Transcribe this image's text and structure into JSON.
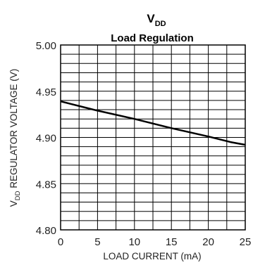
{
  "chart_data": {
    "type": "line",
    "title_main": "V",
    "title_sub": "DD",
    "title_line2": "Load Regulation",
    "xlabel": "LOAD CURRENT (mA)",
    "ylabel_pre": "V",
    "ylabel_sub": "DD",
    "ylabel_post": " REGULATOR VOLTAGE (V)",
    "xlim": [
      0,
      25
    ],
    "ylim": [
      4.8,
      5.0
    ],
    "x_ticks": [
      "0",
      "5",
      "10",
      "15",
      "20",
      "25"
    ],
    "y_ticks": [
      "5.00",
      "4.95",
      "4.90",
      "4.85",
      "4.80"
    ],
    "grid": true,
    "series": [
      {
        "x": [
          0,
          5,
          10,
          15,
          20,
          23,
          25
        ],
        "y": [
          4.939,
          4.929,
          4.92,
          4.91,
          4.901,
          4.895,
          4.892
        ]
      }
    ],
    "line_color": "#000000"
  }
}
